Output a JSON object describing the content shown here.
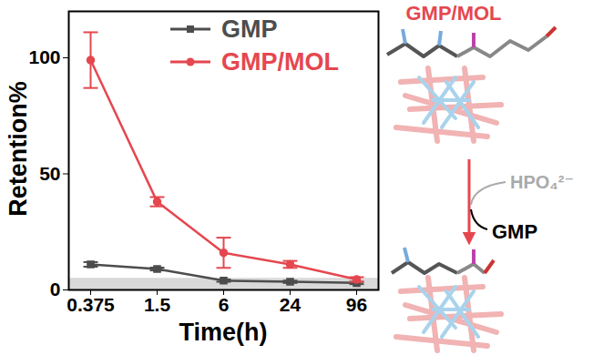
{
  "chart_data": {
    "type": "line",
    "x_label": "Time(h)",
    "y_label": "Retention%",
    "categories": [
      "0.375",
      "1.5",
      "6",
      "24",
      "96"
    ],
    "ylim": [
      0,
      120
    ],
    "yticks": [
      0,
      50,
      100
    ],
    "grid": false,
    "legend": "top-right",
    "shaded_band": [
      0,
      5
    ],
    "series": [
      {
        "name": "GMP",
        "color": "#4d4d4d",
        "marker": "square",
        "values": [
          11,
          9,
          4,
          3.5,
          3
        ],
        "errors": [
          1,
          0.6,
          0.5,
          0.5,
          0.5
        ]
      },
      {
        "name": "GMP/MOL",
        "color": "#e5474f",
        "marker": "circle",
        "values": [
          99,
          38,
          16,
          11,
          4.5
        ],
        "errors": [
          12,
          2,
          6.5,
          1.5,
          1
        ]
      }
    ]
  },
  "diagram": {
    "labels": {
      "top": "GMP/MOL",
      "reagent": "HPO₄²⁻",
      "product": "GMP"
    },
    "colors": {
      "top": "#e5474f",
      "reagent": "#aaaaaa",
      "product": "#000000"
    }
  }
}
